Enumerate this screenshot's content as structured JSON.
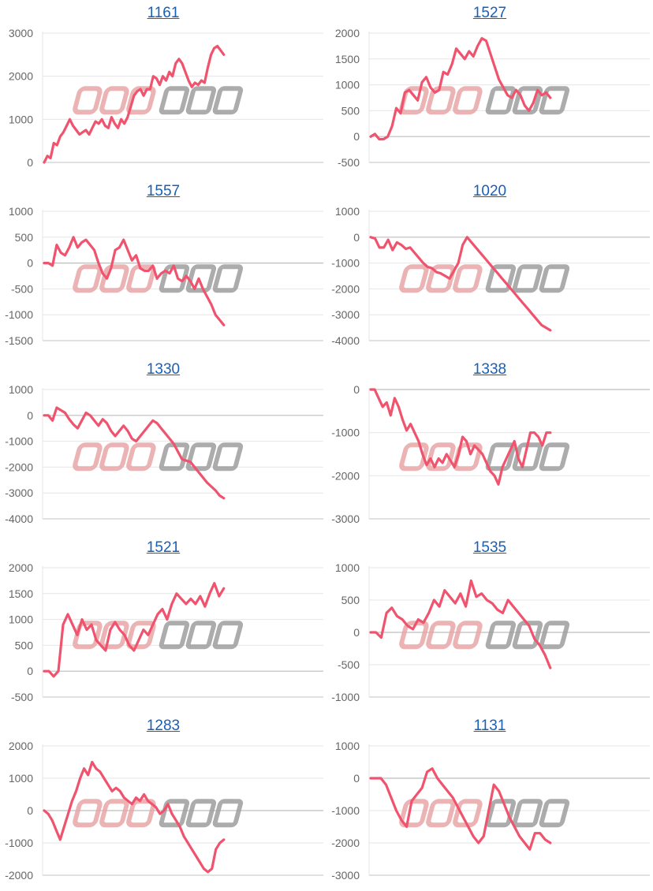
{
  "chart_data": [
    {
      "type": "line",
      "title": "1161",
      "ylim": [
        0,
        3000
      ],
      "yticks": [
        0,
        1000,
        2000,
        3000
      ],
      "series": [
        {
          "values": [
            0,
            150,
            100,
            450,
            400,
            600,
            700,
            850,
            1000,
            850,
            750,
            650,
            700,
            750,
            650,
            800,
            950,
            900,
            1000,
            850,
            800,
            1050,
            900,
            800,
            1000,
            900,
            1050,
            1300,
            1550,
            1650,
            1700,
            1550,
            1700,
            1700,
            2000,
            1950,
            1800,
            2000,
            1900,
            2100,
            2000,
            2300,
            2400,
            2300,
            2100,
            1900,
            1750,
            1850,
            1800,
            1900,
            1850,
            2200,
            2500,
            2650,
            2700,
            2600,
            2500
          ]
        }
      ]
    },
    {
      "type": "line",
      "title": "1527",
      "ylim": [
        -500,
        2000
      ],
      "yticks": [
        -500,
        0,
        500,
        1000,
        1500,
        2000
      ],
      "series": [
        {
          "values": [
            0,
            50,
            -50,
            -50,
            0,
            200,
            550,
            450,
            850,
            900,
            800,
            700,
            1050,
            1150,
            950,
            850,
            900,
            1250,
            1200,
            1400,
            1700,
            1600,
            1500,
            1650,
            1550,
            1750,
            1900,
            1850,
            1600,
            1350,
            1100,
            950,
            800,
            750,
            900,
            800,
            600,
            500,
            650,
            900,
            800,
            850,
            750
          ]
        }
      ]
    },
    {
      "type": "line",
      "title": "1557",
      "ylim": [
        -1500,
        1000
      ],
      "yticks": [
        -1500,
        -1000,
        -500,
        0,
        500,
        1000
      ],
      "series": [
        {
          "values": [
            0,
            0,
            -50,
            350,
            200,
            150,
            300,
            500,
            300,
            400,
            450,
            350,
            250,
            0,
            -200,
            -300,
            -100,
            250,
            300,
            450,
            250,
            50,
            150,
            -100,
            -150,
            -150,
            -50,
            -300,
            -200,
            -150,
            -200,
            -50,
            -300,
            -350,
            -250,
            -350,
            -500,
            -300,
            -500,
            -650,
            -800,
            -1000,
            -1100,
            -1200
          ]
        }
      ]
    },
    {
      "type": "line",
      "title": "1020",
      "ylim": [
        -4000,
        1000
      ],
      "yticks": [
        -4000,
        -3000,
        -2000,
        -1000,
        0,
        1000
      ],
      "series": [
        {
          "values": [
            0,
            -50,
            -400,
            -400,
            -100,
            -500,
            -200,
            -300,
            -450,
            -400,
            -600,
            -800,
            -1000,
            -1150,
            -1200,
            -1350,
            -1400,
            -1500,
            -1600,
            -1300,
            -1000,
            -300,
            0,
            -200,
            -400,
            -600,
            -800,
            -1000,
            -1200,
            -1400,
            -1600,
            -1800,
            -2000,
            -2200,
            -2400,
            -2600,
            -2800,
            -3000,
            -3200,
            -3400,
            -3500,
            -3600
          ]
        }
      ]
    },
    {
      "type": "line",
      "title": "1330",
      "ylim": [
        -4000,
        1000
      ],
      "yticks": [
        -4000,
        -3000,
        -2000,
        -1000,
        0,
        1000
      ],
      "series": [
        {
          "values": [
            0,
            0,
            -200,
            300,
            200,
            100,
            -150,
            -350,
            -500,
            -200,
            100,
            0,
            -200,
            -400,
            -150,
            -300,
            -600,
            -800,
            -600,
            -400,
            -600,
            -900,
            -1000,
            -800,
            -600,
            -400,
            -200,
            -300,
            -500,
            -700,
            -900,
            -1100,
            -1400,
            -1700,
            -1750,
            -1800,
            -2000,
            -2200,
            -2400,
            -2600,
            -2750,
            -2900,
            -3100,
            -3200
          ]
        }
      ]
    },
    {
      "type": "line",
      "title": "1338",
      "ylim": [
        -3000,
        0
      ],
      "yticks": [
        -3000,
        -2000,
        -1000,
        0
      ],
      "series": [
        {
          "values": [
            0,
            0,
            -200,
            -400,
            -300,
            -600,
            -200,
            -400,
            -700,
            -950,
            -800,
            -1000,
            -1200,
            -1500,
            -1750,
            -1600,
            -1800,
            -1600,
            -1700,
            -1500,
            -1650,
            -1800,
            -1500,
            -1100,
            -1200,
            -1500,
            -1300,
            -1400,
            -1500,
            -1700,
            -1900,
            -2000,
            -2200,
            -1800,
            -1600,
            -1400,
            -1200,
            -1600,
            -1800,
            -1400,
            -1000,
            -1000,
            -1100,
            -1300,
            -1000,
            -1000
          ]
        }
      ]
    },
    {
      "type": "line",
      "title": "1521",
      "ylim": [
        -500,
        2000
      ],
      "yticks": [
        -500,
        0,
        500,
        1000,
        1500,
        2000
      ],
      "series": [
        {
          "values": [
            0,
            0,
            -100,
            0,
            900,
            1100,
            900,
            700,
            1000,
            800,
            900,
            600,
            500,
            400,
            800,
            950,
            800,
            700,
            500,
            400,
            600,
            800,
            700,
            900,
            1100,
            1200,
            1000,
            1300,
            1500,
            1400,
            1300,
            1400,
            1300,
            1450,
            1250,
            1500,
            1700,
            1450,
            1600
          ]
        }
      ]
    },
    {
      "type": "line",
      "title": "1535",
      "ylim": [
        -1000,
        1000
      ],
      "yticks": [
        -1000,
        -500,
        0,
        500,
        1000
      ],
      "series": [
        {
          "values": [
            0,
            0,
            -80,
            300,
            380,
            250,
            200,
            100,
            50,
            200,
            150,
            300,
            500,
            400,
            650,
            550,
            450,
            600,
            400,
            800,
            550,
            600,
            500,
            450,
            350,
            300,
            500,
            400,
            300,
            200,
            100,
            -100,
            -200,
            -350,
            -550
          ]
        }
      ]
    },
    {
      "type": "line",
      "title": "1283",
      "ylim": [
        -2000,
        2000
      ],
      "yticks": [
        -2000,
        -1000,
        0,
        1000,
        2000
      ],
      "series": [
        {
          "values": [
            0,
            -100,
            -300,
            -600,
            -900,
            -500,
            -100,
            300,
            600,
            1000,
            1300,
            1100,
            1500,
            1300,
            1200,
            1000,
            800,
            600,
            700,
            600,
            400,
            300,
            200,
            400,
            300,
            500,
            300,
            200,
            100,
            -100,
            0,
            200,
            -100,
            -300,
            -500,
            -800,
            -1000,
            -1200,
            -1400,
            -1600,
            -1800,
            -1900,
            -1800,
            -1200,
            -1000,
            -900
          ]
        }
      ]
    },
    {
      "type": "line",
      "title": "1131",
      "ylim": [
        -3000,
        1000
      ],
      "yticks": [
        -3000,
        -2000,
        -1000,
        0,
        1000
      ],
      "series": [
        {
          "values": [
            0,
            0,
            0,
            -200,
            -600,
            -1000,
            -1300,
            -1500,
            -700,
            -500,
            -300,
            200,
            300,
            0,
            -200,
            -400,
            -600,
            -900,
            -1200,
            -1500,
            -1800,
            -2000,
            -1800,
            -1000,
            -200,
            -400,
            -800,
            -1200,
            -1500,
            -1800,
            -2000,
            -2200,
            -1700,
            -1700,
            -1900,
            -2000
          ]
        }
      ]
    }
  ],
  "style": {
    "line_color": "#f0536d",
    "grid_color": "#e6e6e6",
    "tick_color": "#666666",
    "title_color": "#1a5fb4",
    "watermark_color_left": "#e8a6a6",
    "watermark_color_right": "#9e9e9e"
  }
}
